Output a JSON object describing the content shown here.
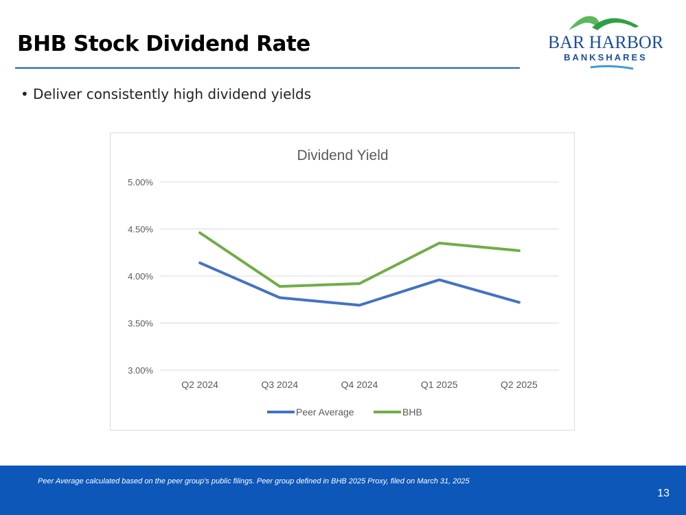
{
  "header": {
    "title": "BHB Stock Dividend Rate"
  },
  "logo": {
    "line1": "BAR HARBOR",
    "line2": "BANKSHARES"
  },
  "bullets": [
    "Deliver consistently high dividend yields"
  ],
  "colors": {
    "accent": "#1f5fae",
    "footer": "#0c57b8",
    "peer": "#4472c4",
    "bhb": "#70ad47"
  },
  "chart_data": {
    "type": "line",
    "title": "Dividend Yield",
    "categories": [
      "Q2 2024",
      "Q3 2024",
      "Q4 2024",
      "Q1 2025",
      "Q2 2025"
    ],
    "series": [
      {
        "name": "Peer Average",
        "values": [
          4.14,
          3.77,
          3.69,
          3.96,
          3.72
        ],
        "color": "#4472c4"
      },
      {
        "name": "BHB",
        "values": [
          4.46,
          3.89,
          3.92,
          4.35,
          4.27
        ],
        "color": "#70ad47"
      }
    ],
    "ylim": [
      3.0,
      5.0
    ],
    "yticks": [
      "3.00%",
      "3.50%",
      "4.00%",
      "4.50%",
      "5.00%"
    ],
    "ytick_values": [
      3.0,
      3.5,
      4.0,
      4.5,
      5.0
    ],
    "grid": true,
    "legend": "bottom"
  },
  "footer": {
    "note": "Peer Average calculated based on the peer group's public filings. Peer group defined in BHB 2025 Proxy, filed on March 31, 2025",
    "page": "13"
  }
}
